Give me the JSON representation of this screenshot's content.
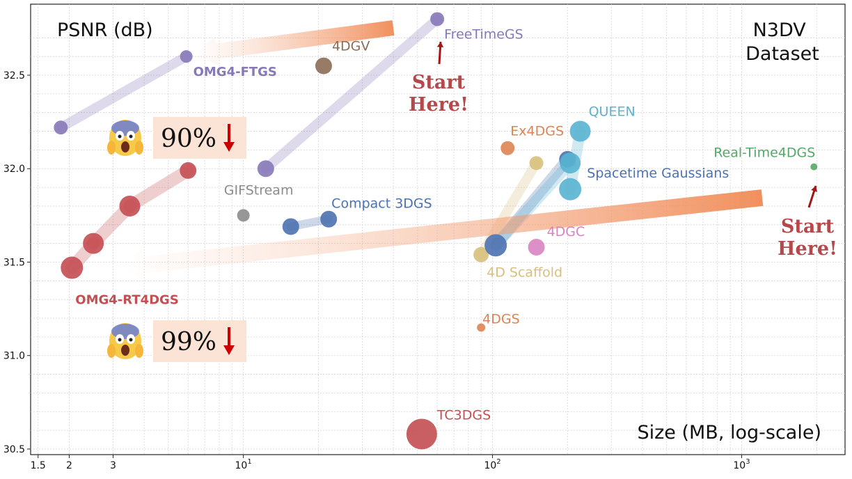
{
  "chart_data": {
    "type": "scatter",
    "title": "",
    "dataset_label": "N3DV\nDataset",
    "ylabel": "PSNR (dB)",
    "xlabel": "Size (MB, log-scale)",
    "x_scale": "log",
    "xlim": [
      1.4,
      2600
    ],
    "ylim": [
      30.47,
      32.88
    ],
    "grid": true,
    "x_ticks": [
      {
        "value": 1.5,
        "label": "1.5"
      },
      {
        "value": 2,
        "label": "2"
      },
      {
        "value": 3,
        "label": "3"
      },
      {
        "value": 10,
        "label": "10",
        "exp": "1"
      },
      {
        "value": 100,
        "label": "10",
        "exp": "2"
      },
      {
        "value": 1000,
        "label": "10",
        "exp": "3"
      }
    ],
    "y_ticks": [
      {
        "value": 30.5,
        "label": "30.5"
      },
      {
        "value": 31.0,
        "label": "31.0"
      },
      {
        "value": 31.5,
        "label": "31.5"
      },
      {
        "value": 32.0,
        "label": "32.0"
      },
      {
        "value": 32.5,
        "label": "32.5"
      }
    ],
    "series": [
      {
        "name": "FreeTimeGS",
        "color": "#8778b8",
        "points": [
          {
            "x": 60,
            "y": 32.8,
            "r": 10
          }
        ]
      },
      {
        "name": "4DGV",
        "color": "#8c6d55",
        "points": [
          {
            "x": 21,
            "y": 32.55,
            "r": 12
          }
        ]
      },
      {
        "name": "Ex4DGS",
        "color": "#dd8452",
        "points": [
          {
            "x": 115,
            "y": 32.11,
            "r": 10
          }
        ]
      },
      {
        "name": "QUEEN",
        "color": "#59b4d0",
        "points": [
          {
            "x": 225,
            "y": 32.2,
            "r": 15
          }
        ]
      },
      {
        "name": "Real-Time4DGS",
        "color": "#55a868",
        "points": [
          {
            "x": 1950,
            "y": 32.01,
            "r": 5
          }
        ]
      },
      {
        "name": "Spacetime Gaussians",
        "color": "#4c72b0",
        "points": [
          {
            "x": 200,
            "y": 32.05,
            "r": 12
          }
        ]
      },
      {
        "name": "GIFStream",
        "color": "#8c8c8c",
        "points": [
          {
            "x": 10,
            "y": 31.75,
            "r": 9
          }
        ]
      },
      {
        "name": "Compact 3DGS",
        "color": "#4c72b0",
        "points": [
          {
            "x": 15.5,
            "y": 31.69,
            "r": 12
          },
          {
            "x": 22,
            "y": 31.73,
            "r": 12
          }
        ]
      },
      {
        "name": "4DGC",
        "color": "#d983c1",
        "points": [
          {
            "x": 150,
            "y": 31.58,
            "r": 12
          }
        ]
      },
      {
        "name": "4D Scaffold",
        "color": "#d8c07c",
        "points": [
          {
            "x": 90,
            "y": 31.54,
            "r": 11
          }
        ]
      },
      {
        "name": "4DGS",
        "color": "#dd8452",
        "points": [
          {
            "x": 90,
            "y": 31.15,
            "r": 6
          }
        ]
      },
      {
        "name": "TC3DGS",
        "color": "#c44e52",
        "points": [
          {
            "x": 52,
            "y": 30.58,
            "r": 22
          }
        ]
      },
      {
        "name": "OMG4-FTGS",
        "color": "#8778b8",
        "points": [
          {
            "x": 1.85,
            "y": 32.22,
            "r": 10
          },
          {
            "x": 5.9,
            "y": 32.6,
            "r": 9
          }
        ]
      },
      {
        "name": "OMG4-RT4DGS",
        "color": "#c44e52",
        "points": [
          {
            "x": 2.05,
            "y": 31.47,
            "r": 16
          },
          {
            "x": 2.5,
            "y": 31.6,
            "r": 15
          },
          {
            "x": 3.5,
            "y": 31.8,
            "r": 15
          },
          {
            "x": 6.0,
            "y": 31.99,
            "r": 12
          }
        ]
      }
    ],
    "annotations": {
      "start_here": "Start\nHere!",
      "ftgs_reduction": "90%",
      "rt4dgs_reduction": "99%"
    }
  }
}
